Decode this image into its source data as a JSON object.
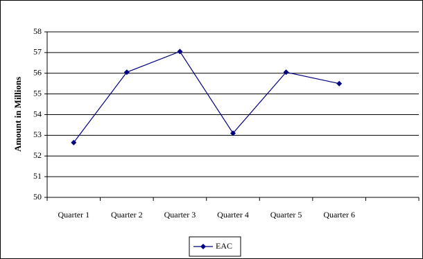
{
  "chart_data": {
    "type": "line",
    "y_label": "Amount in Millions",
    "categories": [
      "Quarter 1",
      "Quarter 2",
      "Quarter 3",
      "Quarter 4",
      "Quarter 5",
      "Quarter 6",
      null
    ],
    "series": [
      {
        "name": "EAC",
        "color": "#000080",
        "values": [
          52.65,
          56.05,
          57.05,
          53.1,
          56.05,
          55.5,
          null
        ]
      }
    ],
    "ylim": [
      50,
      58
    ],
    "yticks": [
      50,
      51,
      52,
      53,
      54,
      55,
      56,
      57,
      58
    ],
    "grid": true,
    "legend": "bottom"
  }
}
